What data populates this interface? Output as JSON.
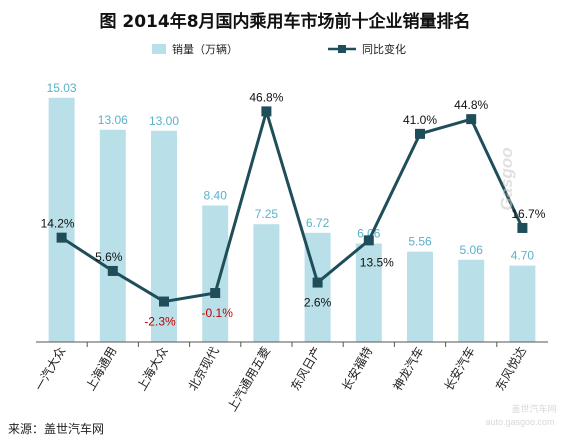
{
  "title": "图  2014年8月国内乘用车市场前十企业销量排名",
  "source": "来源：盖世汽车网",
  "watermark": {
    "main": "Gasgoo",
    "subtitle": "盖世汽车网",
    "url": "auto.gasgoo.com"
  },
  "colors": {
    "bar": "#b9e0e8",
    "bar_label": "#5ab2c9",
    "line": "#1f4e5a",
    "line_label": "#111111",
    "negative_label": "#c00000",
    "axis": "#555555"
  },
  "chart_data": {
    "type": "bar",
    "categories": [
      "一汽大众",
      "上海通用",
      "上海大众",
      "北京现代",
      "上汽通用五菱",
      "东风日产",
      "长安福特",
      "神龙汽车",
      "长安汽车",
      "东风悦达"
    ],
    "series": [
      {
        "name": "销量（万辆）",
        "type": "bar",
        "axis": "left",
        "values": [
          15.03,
          13.06,
          13.0,
          8.4,
          7.25,
          6.72,
          6.06,
          5.56,
          5.06,
          4.7
        ],
        "labels": [
          "15.03",
          "13.06",
          "13.00",
          "8.40",
          "7.25",
          "6.72",
          "6.06",
          "5.56",
          "5.06",
          "4.70"
        ]
      },
      {
        "name": "同比变化",
        "type": "line",
        "axis": "right",
        "values": [
          14.2,
          5.6,
          -2.3,
          -0.1,
          46.8,
          2.6,
          13.5,
          41.0,
          44.8,
          16.7
        ],
        "labels": [
          "14.2%",
          "5.6%",
          "-2.3%",
          "-0.1%",
          "46.8%",
          "2.6%",
          "13.5%",
          "41.0%",
          "44.8%",
          "16.7%"
        ]
      }
    ],
    "ylim_left": [
      0,
      16
    ],
    "ylim_right": [
      -5,
      50
    ],
    "grid": false,
    "legend_position": "top"
  }
}
